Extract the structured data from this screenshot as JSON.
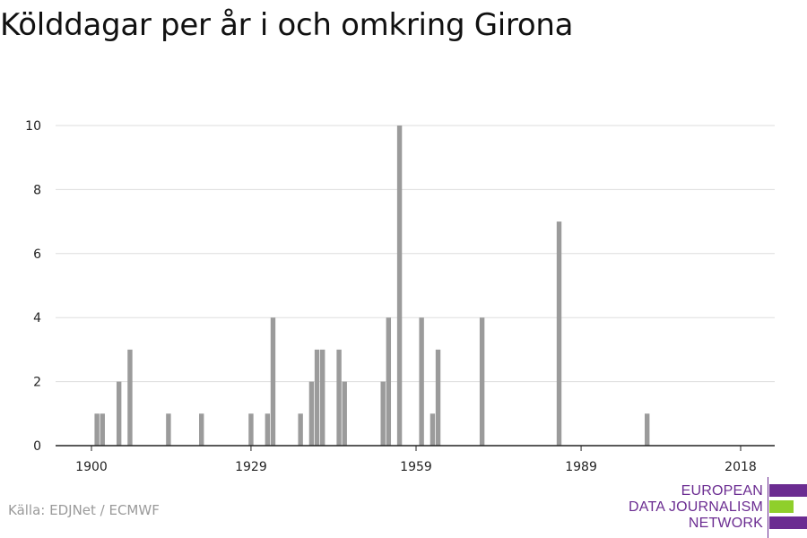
{
  "title": "Kölddagar per år i och omkring Girona",
  "source": "Källa: EDJNet / ECMWF",
  "logo": {
    "line1": "EUROPEAN",
    "line2": "DATA JOURNALISM",
    "line3": "NETWORK",
    "colors": {
      "purple": "#6b2c91",
      "green": "#8fcf2b"
    }
  },
  "colors": {
    "bar": "#9b9b9b",
    "grid": "#dddddd",
    "axis": "#222222"
  },
  "chart_data": {
    "type": "bar",
    "title": "Kölddagar per år i och omkring Girona",
    "xlabel": "",
    "ylabel": "",
    "xlim": [
      1900,
      2018
    ],
    "ylim": [
      0,
      10
    ],
    "grid": true,
    "x_ticks": [
      1900,
      1929,
      1959,
      1989,
      2018
    ],
    "y_ticks": [
      0,
      2,
      4,
      6,
      8,
      10
    ],
    "x": [
      1901,
      1902,
      1905,
      1907,
      1914,
      1920,
      1929,
      1932,
      1933,
      1938,
      1940,
      1941,
      1942,
      1945,
      1946,
      1953,
      1954,
      1956,
      1960,
      1962,
      1963,
      1971,
      1985,
      2001
    ],
    "values": [
      1,
      1,
      2,
      3,
      1,
      1,
      1,
      1,
      4,
      1,
      2,
      3,
      3,
      3,
      2,
      2,
      4,
      10,
      4,
      1,
      3,
      4,
      7,
      1
    ]
  }
}
